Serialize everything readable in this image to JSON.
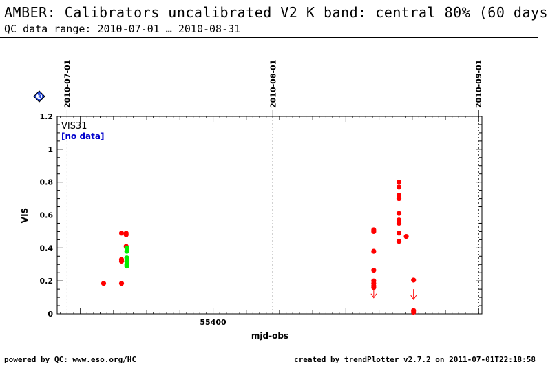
{
  "header": {
    "title": "AMBER: Calibrators uncalibrated V2 K band: central 80% (60 days",
    "subtitle": "QC data range: 2010-07-01 … 2010-08-31"
  },
  "panel": {
    "badge": "3",
    "label": "VIS31",
    "nodata": "[no data]"
  },
  "footer": {
    "left": "powered by QC: www.eso.org/HC",
    "right": "created by trendPlotter v2.7.2 on 2011-07-01T22:18:58"
  },
  "colors": {
    "red": "#ff0000",
    "green": "#00ee00",
    "badge": "#1a3fd8",
    "nodata": "#0000cc"
  },
  "chart_data": {
    "type": "scatter",
    "xlabel": "mjd-obs",
    "ylabel": "VIS",
    "xlim": [
      55376.5,
      55440.5
    ],
    "ylim": [
      0,
      1.2
    ],
    "x_ticks": [
      55400
    ],
    "y_ticks": [
      0,
      0.2,
      0.4,
      0.6,
      0.8,
      1,
      1.2
    ],
    "y_tick_labels": [
      "0",
      "0.2",
      "0.4",
      "0.6",
      "0.8",
      "1",
      "1.2"
    ],
    "date_markers": [
      {
        "x": 55378.0,
        "label": "2010-07-01"
      },
      {
        "x": 55409.0,
        "label": "2010-08-01"
      },
      {
        "x": 55440.0,
        "label": "2010-09-01"
      }
    ],
    "series": [
      {
        "color": "red",
        "points": [
          [
            55383.5,
            0.185
          ],
          [
            55386.2,
            0.185
          ],
          [
            55386.2,
            0.32
          ],
          [
            55386.2,
            0.33
          ],
          [
            55386.2,
            0.49
          ],
          [
            55386.9,
            0.49
          ],
          [
            55386.9,
            0.48
          ],
          [
            55386.9,
            0.41
          ],
          [
            55424.2,
            0.51
          ],
          [
            55424.2,
            0.5
          ],
          [
            55424.2,
            0.38
          ],
          [
            55424.2,
            0.265
          ],
          [
            55424.2,
            0.2
          ],
          [
            55424.2,
            0.185
          ],
          [
            55424.2,
            0.17
          ],
          [
            55424.2,
            0.16
          ],
          [
            55428.0,
            0.8
          ],
          [
            55428.0,
            0.77
          ],
          [
            55428.0,
            0.72
          ],
          [
            55428.0,
            0.7
          ],
          [
            55428.0,
            0.61
          ],
          [
            55428.0,
            0.57
          ],
          [
            55428.0,
            0.55
          ],
          [
            55428.0,
            0.49
          ],
          [
            55428.0,
            0.44
          ],
          [
            55429.1,
            0.47
          ],
          [
            55430.2,
            0.205
          ],
          [
            55430.2,
            0.02
          ],
          [
            55430.2,
            0.01
          ]
        ]
      },
      {
        "color": "green",
        "points": [
          [
            55387.0,
            0.4
          ],
          [
            55387.0,
            0.38
          ],
          [
            55387.0,
            0.34
          ],
          [
            55387.0,
            0.32
          ],
          [
            55387.0,
            0.3
          ],
          [
            55387.0,
            0.29
          ]
        ]
      }
    ],
    "upper_limits": [
      {
        "x": 55424.2,
        "y": 0.16
      },
      {
        "x": 55430.2,
        "y": 0.15
      }
    ]
  }
}
